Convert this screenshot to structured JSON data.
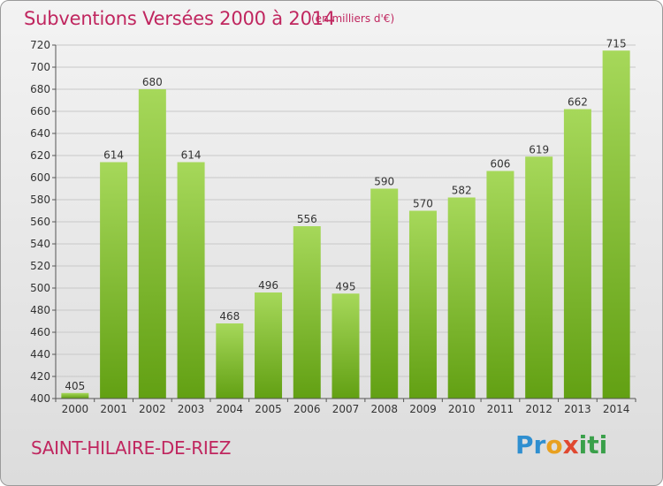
{
  "header": {
    "title": "Subventions Versées 2000 à 2014",
    "unit_note": "(en milliers d'€)"
  },
  "footer": {
    "commune": "SAINT-HILAIRE-DE-RIEZ",
    "logo_text": "Proxiti"
  },
  "colors": {
    "bar_light": "#a6d85a",
    "bar_dark": "#62a013",
    "title": "#c0265f",
    "grid": "#c8c8c8"
  },
  "chart_data": {
    "type": "bar",
    "title": "Subventions Versées 2000 à 2014",
    "subtitle": "(en milliers d'€)",
    "categories": [
      "2000",
      "2001",
      "2002",
      "2003",
      "2004",
      "2005",
      "2006",
      "2007",
      "2008",
      "2009",
      "2010",
      "2011",
      "2012",
      "2013",
      "2014"
    ],
    "values": [
      405,
      614,
      680,
      614,
      468,
      496,
      556,
      495,
      590,
      570,
      582,
      606,
      619,
      662,
      715
    ],
    "xlabel": "",
    "ylabel": "",
    "ylim": [
      400,
      720
    ],
    "yticks": [
      400,
      420,
      440,
      460,
      480,
      500,
      520,
      540,
      560,
      580,
      600,
      620,
      640,
      660,
      680,
      700,
      720
    ],
    "grid": true,
    "data_labels": true
  }
}
